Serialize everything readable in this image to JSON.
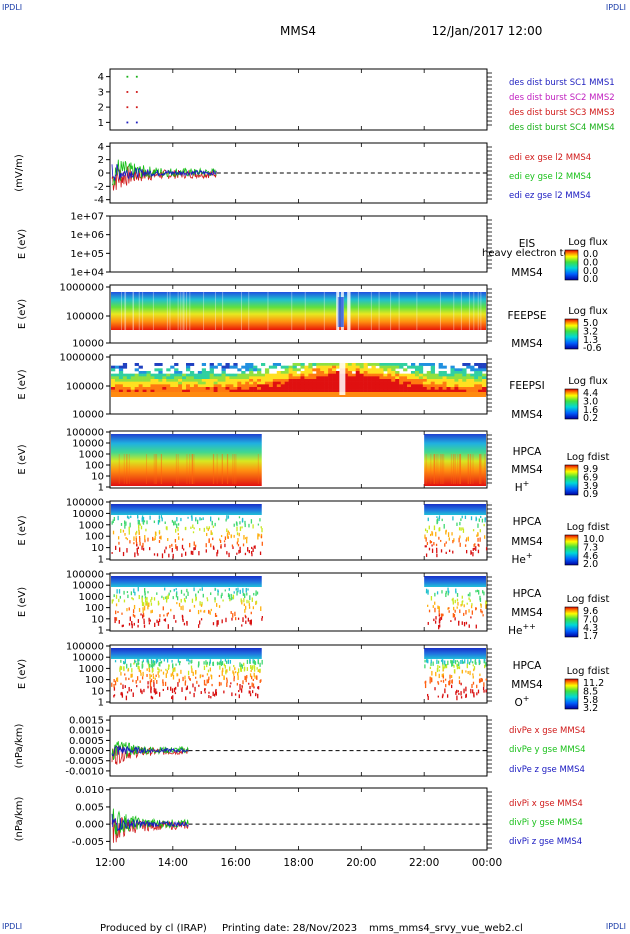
{
  "header": {
    "corner_label": "IPDLI",
    "title": "MMS4",
    "datetime": "12/Jan/2017 12:00"
  },
  "footer": {
    "produced_by": "Produced by cl (IRAP)",
    "printing_date": "Printing date: 28/Nov/2023",
    "filename": "mms_mms4_srvy_vue_web2.cl"
  },
  "colors": {
    "mms1": "#1f1fbf",
    "mms2": "#c020c0",
    "mms3": "#d01818",
    "mms4": "#18b018",
    "x": "#d01818",
    "y": "#18c018",
    "z": "#1818c0"
  },
  "x_axis": {
    "ticks": [
      "12:00",
      "14:00",
      "16:00",
      "18:00",
      "20:00",
      "22:00",
      "00:00"
    ],
    "range_hours": [
      12,
      24
    ]
  },
  "chart_data": [
    {
      "type": "scatter",
      "name": "des dist burst",
      "y_ticks": [
        "1",
        "2",
        "3",
        "4"
      ],
      "ylim": [
        0.5,
        4.5
      ],
      "legend": [
        {
          "label": "des dist burst SC1 MMS1",
          "color": "#1f1fbf"
        },
        {
          "label": "des dist burst SC2 MMS2",
          "color": "#c020c0"
        },
        {
          "label": "des dist burst SC3 MMS3",
          "color": "#d01818"
        },
        {
          "label": "des dist burst SC4 MMS4",
          "color": "#18b018"
        }
      ],
      "points": [
        {
          "x": 12.55,
          "y": 1,
          "color": "#1f1fbf"
        },
        {
          "x": 12.85,
          "y": 1,
          "color": "#1f1fbf"
        },
        {
          "x": 12.55,
          "y": 2,
          "color": "#d01818"
        },
        {
          "x": 12.85,
          "y": 2,
          "color": "#d01818"
        },
        {
          "x": 12.55,
          "y": 3,
          "color": "#d01818"
        },
        {
          "x": 12.85,
          "y": 3,
          "color": "#d01818"
        },
        {
          "x": 12.55,
          "y": 4,
          "color": "#18b018"
        },
        {
          "x": 12.85,
          "y": 4,
          "color": "#18b018"
        }
      ]
    },
    {
      "type": "line",
      "ylabel": "(mV/m)",
      "y_ticks": [
        "4",
        "2",
        "0",
        "-2",
        "-4"
      ],
      "ylim": [
        -4.5,
        4.5
      ],
      "data_extent_hours": [
        12.0,
        15.4
      ],
      "legend": [
        {
          "label": "edi ex gse l2 MMS4",
          "color": "#d01818"
        },
        {
          "label": "edi ey gse l2 MMS4",
          "color": "#18c018"
        },
        {
          "label": "edi ez gse l2 MMS4",
          "color": "#1818c0"
        }
      ]
    },
    {
      "type": "heatmap",
      "ylabel": "E (eV)",
      "y_ticks": [
        "1e+07",
        "1e+06",
        "1e+05",
        "1e+04"
      ],
      "instrument": [
        "EIS",
        "MMS4"
      ],
      "overlap_text": "heavy electron to",
      "colorbar_title": "Log flux",
      "colorbar_ticks": [
        "0.0",
        "0.0",
        "0.0",
        "0.0"
      ]
    },
    {
      "type": "heatmap",
      "ylabel": "E (eV)",
      "y_ticks": [
        "1000000",
        "100000",
        "10000"
      ],
      "instrument": [
        "FEEPSE",
        "MMS4"
      ],
      "colorbar_title": "Log flux",
      "colorbar_ticks": [
        "5.0",
        "3.2",
        "1.3",
        "-0.6"
      ]
    },
    {
      "type": "heatmap",
      "ylabel": "E (eV)",
      "y_ticks": [
        "1000000",
        "100000",
        "10000"
      ],
      "instrument": [
        "FEEPSI",
        "MMS4"
      ],
      "colorbar_title": "Log flux",
      "colorbar_ticks": [
        "4.4",
        "3.0",
        "1.6",
        "0.2"
      ]
    },
    {
      "type": "heatmap",
      "ylabel": "E (eV)",
      "y_ticks": [
        "100000",
        "10000",
        "1000",
        "100",
        "10",
        "1"
      ],
      "instrument": [
        "HPCA",
        "MMS4"
      ],
      "species": "H",
      "species_sup": "+",
      "colorbar_title": "Log fdist",
      "colorbar_ticks": [
        "9.9",
        "6.9",
        "3.9",
        "0.9"
      ]
    },
    {
      "type": "heatmap",
      "ylabel": "E (eV)",
      "y_ticks": [
        "100000",
        "10000",
        "1000",
        "100",
        "10",
        "1"
      ],
      "instrument": [
        "HPCA",
        "MMS4"
      ],
      "species": "He",
      "species_sup": "+",
      "colorbar_title": "Log fdist",
      "colorbar_ticks": [
        "10.0",
        "7.3",
        "4.6",
        "2.0"
      ]
    },
    {
      "type": "heatmap",
      "ylabel": "E (eV)",
      "y_ticks": [
        "100000",
        "10000",
        "1000",
        "100",
        "10",
        "1"
      ],
      "instrument": [
        "HPCA",
        "MMS4"
      ],
      "species": "He",
      "species_sup": "++",
      "colorbar_title": "Log fdist",
      "colorbar_ticks": [
        "9.6",
        "7.0",
        "4.3",
        "1.7"
      ]
    },
    {
      "type": "heatmap",
      "ylabel": "E (eV)",
      "y_ticks": [
        "100000",
        "10000",
        "1000",
        "100",
        "10",
        "1"
      ],
      "instrument": [
        "HPCA",
        "MMS4"
      ],
      "species": "O",
      "species_sup": "+",
      "colorbar_title": "Log fdist",
      "colorbar_ticks": [
        "11.2",
        "8.5",
        "5.8",
        "3.2"
      ]
    },
    {
      "type": "line",
      "ylabel": "(nPa/km)",
      "y_ticks": [
        "0.0015",
        "0.0010",
        "0.0005",
        "0.0000",
        "-0.0005",
        "-0.0010"
      ],
      "ylim": [
        -0.00125,
        0.0017
      ],
      "data_extent_hours": [
        12.0,
        14.5
      ],
      "legend": [
        {
          "label": "divPe x gse MMS4",
          "color": "#d01818"
        },
        {
          "label": "divPe y gse MMS4",
          "color": "#18c018"
        },
        {
          "label": "divPe z gse MMS4",
          "color": "#1818c0"
        }
      ]
    },
    {
      "type": "line",
      "ylabel": "(nPa/km)",
      "y_ticks": [
        "0.010",
        "0.005",
        "0.000",
        "-0.005"
      ],
      "ylim": [
        -0.0075,
        0.0105
      ],
      "data_extent_hours": [
        12.0,
        14.5
      ],
      "legend": [
        {
          "label": "divPi x gse MMS4",
          "color": "#d01818"
        },
        {
          "label": "divPi y gse MMS4",
          "color": "#18c018"
        },
        {
          "label": "divPi z gse MMS4",
          "color": "#1818c0"
        }
      ]
    }
  ]
}
